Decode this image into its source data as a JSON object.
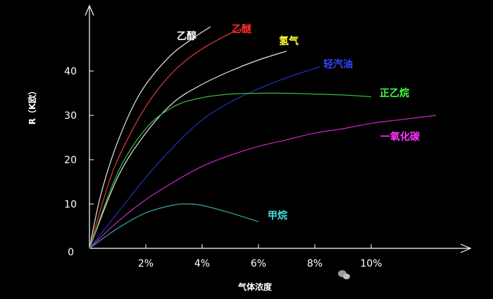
{
  "chart_data": {
    "type": "line",
    "xlabel": "气体浓度",
    "ylabel": "R（K欧）",
    "xlim": [
      0,
      13
    ],
    "ylim": [
      0,
      50
    ],
    "grid": false,
    "legend": "inline labels at curve ends",
    "x_ticks": [
      {
        "value": 2,
        "label": "2%"
      },
      {
        "value": 4,
        "label": "4%"
      },
      {
        "value": 6,
        "label": "6%"
      },
      {
        "value": 8,
        "label": "8%"
      },
      {
        "value": 10,
        "label": "10%"
      }
    ],
    "y_ticks": [
      {
        "value": 10,
        "label": "10"
      },
      {
        "value": 20,
        "label": "20"
      },
      {
        "value": 30,
        "label": "30"
      },
      {
        "value": 40,
        "label": "40"
      }
    ],
    "origin_label": "0",
    "series": [
      {
        "name": "乙醇",
        "color": "#e8e8e8",
        "x": [
          0,
          0.4,
          1,
          1.8,
          2.8,
          3.7,
          4.3
        ],
        "y": [
          0,
          12,
          24,
          35,
          43,
          47.5,
          50
        ]
      },
      {
        "name": "乙醚",
        "color": "#e33b3b",
        "x": [
          0,
          0.5,
          1,
          2,
          3,
          4,
          5,
          5.4
        ],
        "y": [
          0,
          11,
          20,
          32,
          40,
          45,
          48.5,
          49.5
        ]
      },
      {
        "name": "氢气",
        "color": "#e8e8e8",
        "x": [
          0,
          1,
          2,
          3,
          4,
          5,
          6,
          7
        ],
        "y": [
          0,
          16,
          26,
          33,
          37,
          40,
          42.5,
          44.5
        ]
      },
      {
        "name": "轻汽油",
        "color": "#2233bb",
        "x": [
          0,
          1,
          2,
          3,
          4,
          5,
          6,
          7,
          8.2
        ],
        "y": [
          0,
          8,
          16,
          23,
          29,
          33,
          36,
          38.5,
          41
        ]
      },
      {
        "name": "正乙烷",
        "color": "#3dbb3d",
        "x": [
          0,
          1,
          2,
          3,
          4,
          5,
          6,
          7,
          8,
          9,
          10
        ],
        "y": [
          0,
          17,
          27,
          32,
          34,
          34.8,
          35,
          35,
          34.8,
          34.6,
          34.2
        ]
      },
      {
        "name": "一氧化碳",
        "color": "#c828c8",
        "x": [
          0,
          1,
          2,
          3,
          4,
          5,
          6,
          7,
          8,
          9,
          10,
          11,
          12.3
        ],
        "y": [
          0,
          6,
          11,
          15,
          18.5,
          21,
          23,
          24.5,
          26,
          27,
          28.2,
          29,
          30
        ]
      },
      {
        "name": "甲烷",
        "color": "#3aa6a6",
        "x": [
          0,
          1,
          2,
          3,
          3.5,
          4,
          5,
          6
        ],
        "y": [
          0,
          4.5,
          8,
          9.8,
          10,
          9.7,
          8,
          6
        ]
      }
    ],
    "label_colors": {
      "乙醇": "#ffffff",
      "乙醚": "#ff2a2a",
      "氢气": "#ffff33",
      "轻汽油": "#3344ff",
      "正乙烷": "#44ff44",
      "一氧化碳": "#ff33ff",
      "甲烷": "#44dddd"
    }
  },
  "watermark": {
    "icon": "wechat-icon"
  }
}
